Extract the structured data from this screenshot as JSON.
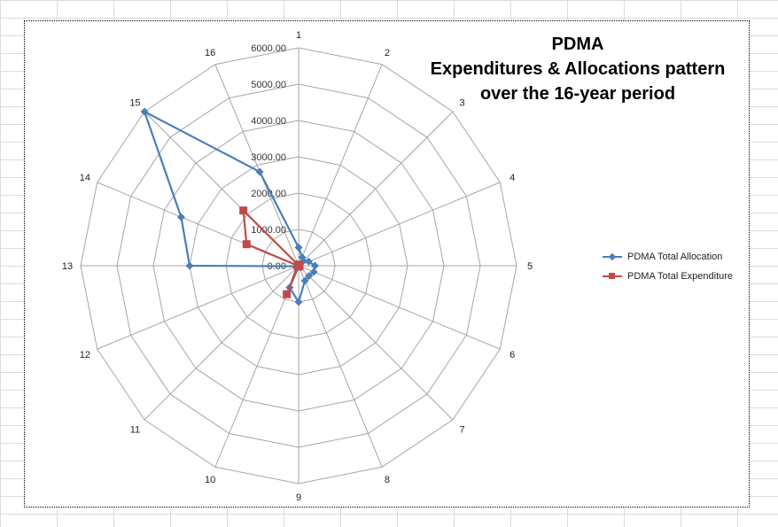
{
  "chart_data": {
    "type": "radar",
    "title_lines": [
      "PDMA",
      "Expenditures & Allocations pattern",
      "over the 16-year period"
    ],
    "categories": [
      "1",
      "2",
      "3",
      "4",
      "5",
      "6",
      "7",
      "8",
      "9",
      "10",
      "11",
      "12",
      "13",
      "14",
      "15",
      "16"
    ],
    "radial_ticks": [
      "0.00",
      "1000.00",
      "2000.00",
      "3000.00",
      "4000.00",
      "5000.00",
      "6000.00"
    ],
    "rmax": 6000,
    "series": [
      {
        "name": "PDMA Total Allocation",
        "color": "#4a7ebb",
        "marker": "diamond",
        "values": [
          500,
          250,
          180,
          300,
          450,
          450,
          400,
          450,
          1000,
          650,
          80,
          40,
          3000,
          3500,
          6000,
          2800
        ]
      },
      {
        "name": "PDMA Total Expenditure",
        "color": "#be4b48",
        "marker": "square",
        "values": [
          30,
          20,
          20,
          20,
          20,
          20,
          20,
          20,
          20,
          850,
          20,
          20,
          20,
          1550,
          2150,
          20
        ]
      }
    ],
    "legend_position": "right",
    "grid": true
  }
}
